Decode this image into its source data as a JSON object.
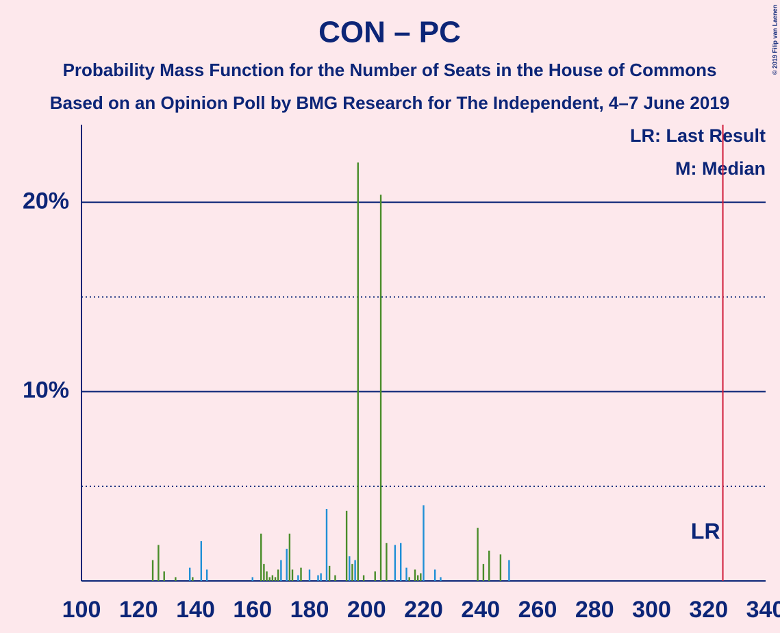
{
  "chart_data": {
    "type": "bar",
    "title": "CON – PC",
    "subtitle": "Probability Mass Function for the Number of Seats in the House of Commons",
    "subtitle2": "Based on an Opinion Poll by BMG Research for The Independent, 4–7 June 2019",
    "copyright": "© 2019 Filip van Laenen",
    "legend_lr": "LR: Last Result",
    "legend_median": "M: Median",
    "last_result": 325,
    "last_result_label": "LR",
    "x": [
      125,
      127,
      129,
      133,
      138,
      139,
      142,
      144,
      160,
      163,
      164,
      165,
      166,
      167,
      168,
      169,
      170,
      172,
      173,
      174,
      176,
      177,
      180,
      183,
      184,
      186,
      187,
      189,
      193,
      194,
      195,
      196,
      197,
      199,
      203,
      205,
      207,
      210,
      212,
      214,
      215,
      217,
      218,
      219,
      220,
      224,
      226,
      239,
      241,
      243,
      247,
      250
    ],
    "series": [
      {
        "color": "#4a8c2a",
        "values": [
          1.1,
          1.9,
          0.5,
          0.2,
          null,
          0.2,
          null,
          null,
          null,
          2.5,
          0.9,
          0.5,
          0.2,
          0.3,
          0.2,
          0.6,
          null,
          null,
          2.5,
          0.6,
          null,
          0.7,
          null,
          null,
          null,
          null,
          0.8,
          0.3,
          3.7,
          null,
          0.9,
          null,
          22.1,
          0.3,
          0.5,
          20.4,
          2.0,
          null,
          null,
          null,
          0.2,
          0.6,
          0.3,
          0.4,
          null,
          null,
          null,
          2.8,
          0.9,
          1.6,
          1.4,
          null
        ]
      },
      {
        "color": "#1f8fd6",
        "values": [
          null,
          null,
          null,
          null,
          0.7,
          null,
          2.1,
          0.6,
          0.2,
          null,
          null,
          null,
          null,
          null,
          null,
          null,
          1.1,
          1.7,
          null,
          null,
          0.3,
          null,
          0.6,
          0.3,
          0.4,
          3.8,
          null,
          null,
          null,
          1.3,
          null,
          1.1,
          null,
          null,
          null,
          null,
          null,
          1.9,
          2.0,
          0.7,
          null,
          null,
          null,
          null,
          4.0,
          0.6,
          0.2,
          null,
          null,
          null,
          null,
          1.1
        ]
      }
    ],
    "xlim": [
      100,
      340
    ],
    "xticks": [
      100,
      120,
      140,
      160,
      180,
      200,
      220,
      240,
      260,
      280,
      300,
      320,
      340
    ],
    "ylim": [
      0,
      24.1
    ],
    "yticks": [
      {
        "value": 10,
        "label": "10%"
      },
      {
        "value": 20,
        "label": "20%"
      }
    ],
    "minor_grid": [
      5,
      15
    ],
    "grid": true
  }
}
